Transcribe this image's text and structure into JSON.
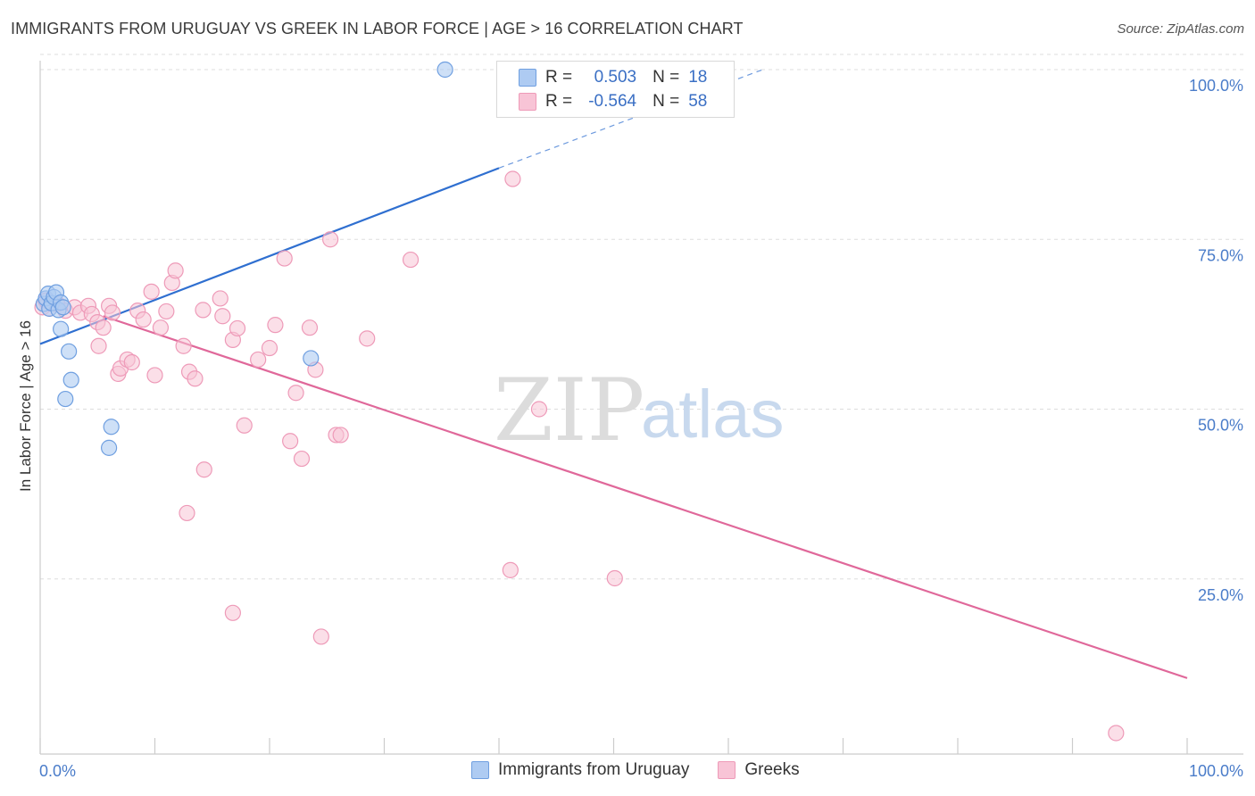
{
  "header": {
    "title": "IMMIGRANTS FROM URUGUAY VS GREEK IN LABOR FORCE | AGE > 16 CORRELATION CHART",
    "source": "Source: ZipAtlas.com"
  },
  "watermark": {
    "zip": "ZIP",
    "atlas": "atlas"
  },
  "stats_legend": {
    "rows": [
      {
        "r_label": "R =",
        "r_value": "0.503",
        "n_label": "N =",
        "n_value": "18"
      },
      {
        "r_label": "R =",
        "r_value": "-0.564",
        "n_label": "N =",
        "n_value": "58"
      }
    ]
  },
  "colors": {
    "uruguay_fill": "#aecbf2",
    "uruguay_stroke": "#6f9fe0",
    "uruguay_line": "#2f6fd0",
    "greek_fill": "#f8c4d6",
    "greek_stroke": "#ee9ab8",
    "greek_line": "#e0689a",
    "tick_text": "#4a7cc9",
    "grid": "#dddddd"
  },
  "chart_data": {
    "type": "scatter",
    "title": "IMMIGRANTS FROM URUGUAY VS GREEK IN LABOR FORCE | AGE > 16 CORRELATION CHART",
    "xlabel": "",
    "ylabel": "In Labor Force | Age > 16",
    "xlim": [
      0,
      100
    ],
    "ylim": [
      0,
      102
    ],
    "x_tick_labels": [
      "0.0%",
      "100.0%"
    ],
    "y_ticks": [
      25,
      50,
      75,
      100
    ],
    "y_tick_labels": [
      "25.0%",
      "50.0%",
      "75.0%",
      "100.0%"
    ],
    "legend": [
      "Immigrants from Uruguay",
      "Greeks"
    ],
    "series": [
      {
        "name": "Immigrants from Uruguay",
        "r": 0.503,
        "n": 18,
        "points": [
          [
            0.3,
            65.5
          ],
          [
            0.5,
            66.3
          ],
          [
            0.7,
            67.0
          ],
          [
            0.8,
            64.8
          ],
          [
            1.0,
            65.6
          ],
          [
            1.2,
            66.5
          ],
          [
            1.4,
            67.2
          ],
          [
            1.6,
            64.6
          ],
          [
            1.8,
            65.7
          ],
          [
            2.0,
            65.0
          ],
          [
            1.8,
            61.8
          ],
          [
            2.5,
            58.5
          ],
          [
            2.7,
            54.3
          ],
          [
            2.2,
            51.5
          ],
          [
            6.2,
            47.4
          ],
          [
            6.0,
            44.3
          ],
          [
            23.6,
            57.5
          ],
          [
            35.3,
            100.0
          ]
        ],
        "trend": {
          "x0": 0,
          "y0": 59.6,
          "x1": 40,
          "y1": 85.5,
          "dash_to_x": 63,
          "dash_to_y": 100.0
        }
      },
      {
        "name": "Greeks",
        "r": -0.564,
        "n": 58,
        "points": [
          [
            0.2,
            65.0
          ],
          [
            0.5,
            66.0
          ],
          [
            0.8,
            64.8
          ],
          [
            1.5,
            65.5
          ],
          [
            2.2,
            64.5
          ],
          [
            3.0,
            65.0
          ],
          [
            3.5,
            64.2
          ],
          [
            4.2,
            65.2
          ],
          [
            4.5,
            64.0
          ],
          [
            5.0,
            62.8
          ],
          [
            5.1,
            59.3
          ],
          [
            5.5,
            62.0
          ],
          [
            6.0,
            65.2
          ],
          [
            6.3,
            64.2
          ],
          [
            6.8,
            55.2
          ],
          [
            7.0,
            56.0
          ],
          [
            7.6,
            57.3
          ],
          [
            8.0,
            56.9
          ],
          [
            8.5,
            64.5
          ],
          [
            9.0,
            63.2
          ],
          [
            9.7,
            67.3
          ],
          [
            10.0,
            55.0
          ],
          [
            10.5,
            62.0
          ],
          [
            11.0,
            64.4
          ],
          [
            11.5,
            68.6
          ],
          [
            11.8,
            70.4
          ],
          [
            12.5,
            59.3
          ],
          [
            13.0,
            55.5
          ],
          [
            13.5,
            54.5
          ],
          [
            14.2,
            64.6
          ],
          [
            15.7,
            66.3
          ],
          [
            15.9,
            63.7
          ],
          [
            16.8,
            60.2
          ],
          [
            17.2,
            61.9
          ],
          [
            17.8,
            47.6
          ],
          [
            12.8,
            34.7
          ],
          [
            14.3,
            41.1
          ],
          [
            16.8,
            20.0
          ],
          [
            19.0,
            57.3
          ],
          [
            20.0,
            59.0
          ],
          [
            20.5,
            62.4
          ],
          [
            21.3,
            72.2
          ],
          [
            21.8,
            45.3
          ],
          [
            22.3,
            52.4
          ],
          [
            22.8,
            42.7
          ],
          [
            23.5,
            62.0
          ],
          [
            24.0,
            55.8
          ],
          [
            25.3,
            75.0
          ],
          [
            25.8,
            46.2
          ],
          [
            26.2,
            46.2
          ],
          [
            24.5,
            16.5
          ],
          [
            28.5,
            60.4
          ],
          [
            32.3,
            72.0
          ],
          [
            41.2,
            83.9
          ],
          [
            41.0,
            26.3
          ],
          [
            43.5,
            50.0
          ],
          [
            50.1,
            25.1
          ],
          [
            93.8,
            2.3
          ]
        ],
        "trend": {
          "x0": 5.5,
          "y0": 63.7,
          "x1": 100,
          "y1": 10.4
        }
      }
    ]
  }
}
